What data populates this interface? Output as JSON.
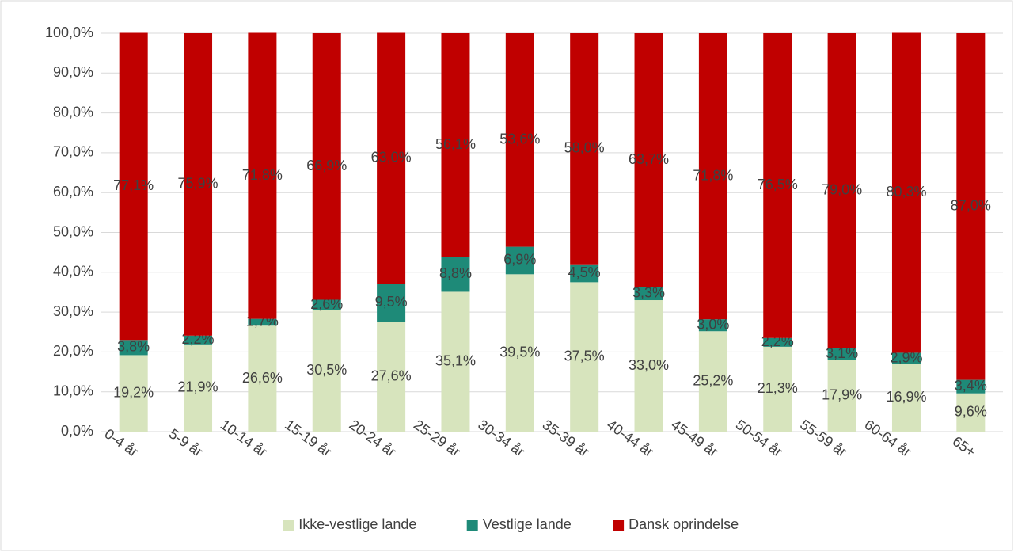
{
  "chart_data": {
    "type": "bar",
    "stacked": true,
    "categories": [
      "0-4 år",
      "5-9 år",
      "10-14 år",
      "15-19 år",
      "20-24 år",
      "25-29 år",
      "30-34 år",
      "35-39 år",
      "40-44 år",
      "45-49 år",
      "50-54 år",
      "55-59 år",
      "60-64 år",
      "65+"
    ],
    "series": [
      {
        "name": "Ikke-vestlige lande",
        "color": "#d7e4bd",
        "values": [
          19.2,
          21.9,
          26.6,
          30.5,
          27.6,
          35.1,
          39.5,
          37.5,
          33.0,
          25.2,
          21.3,
          17.9,
          16.9,
          9.6
        ],
        "value_labels": [
          "19,2%",
          "21,9%",
          "26,6%",
          "30,5%",
          "27,6%",
          "35,1%",
          "39,5%",
          "37,5%",
          "33,0%",
          "25,2%",
          "21,3%",
          "17,9%",
          "16,9%",
          "9,6%"
        ]
      },
      {
        "name": "Vestlige lande",
        "color": "#1e8a78",
        "values": [
          3.8,
          2.2,
          1.7,
          2.6,
          9.5,
          8.8,
          6.9,
          4.5,
          3.3,
          3.0,
          2.2,
          3.1,
          2.9,
          3.4
        ],
        "value_labels": [
          "3,8%",
          "2,2%",
          "1,7%",
          "2,6%",
          "9,5%",
          "8,8%",
          "6,9%",
          "4,5%",
          "3,3%",
          "3,0%",
          "2,2%",
          "3,1%",
          "2,9%",
          "3,4%"
        ]
      },
      {
        "name": "Dansk oprindelse",
        "color": "#c00000",
        "values": [
          77.1,
          75.9,
          71.8,
          66.9,
          63.0,
          56.1,
          53.6,
          58.0,
          63.7,
          71.8,
          76.5,
          79.0,
          80.3,
          87.0
        ],
        "value_labels": [
          "77,1%",
          "75,9%",
          "71,8%",
          "66,9%",
          "63,0%",
          "56,1%",
          "53,6%",
          "58,0%",
          "63,7%",
          "71,8%",
          "76,5%",
          "79,0%",
          "80,3%",
          "87,0%"
        ]
      }
    ],
    "ylim": [
      0,
      100
    ],
    "yticks": [
      {
        "value": 0,
        "label": "0,0%"
      },
      {
        "value": 10,
        "label": "10,0%"
      },
      {
        "value": 20,
        "label": "20,0%"
      },
      {
        "value": 30,
        "label": "30,0%"
      },
      {
        "value": 40,
        "label": "40,0%"
      },
      {
        "value": 50,
        "label": "50,0%"
      },
      {
        "value": 60,
        "label": "60,0%"
      },
      {
        "value": 70,
        "label": "70,0%"
      },
      {
        "value": 80,
        "label": "80,0%"
      },
      {
        "value": 90,
        "label": "90,0%"
      },
      {
        "value": 100,
        "label": "100,0%"
      }
    ],
    "grid": true,
    "legend": "bottom"
  }
}
